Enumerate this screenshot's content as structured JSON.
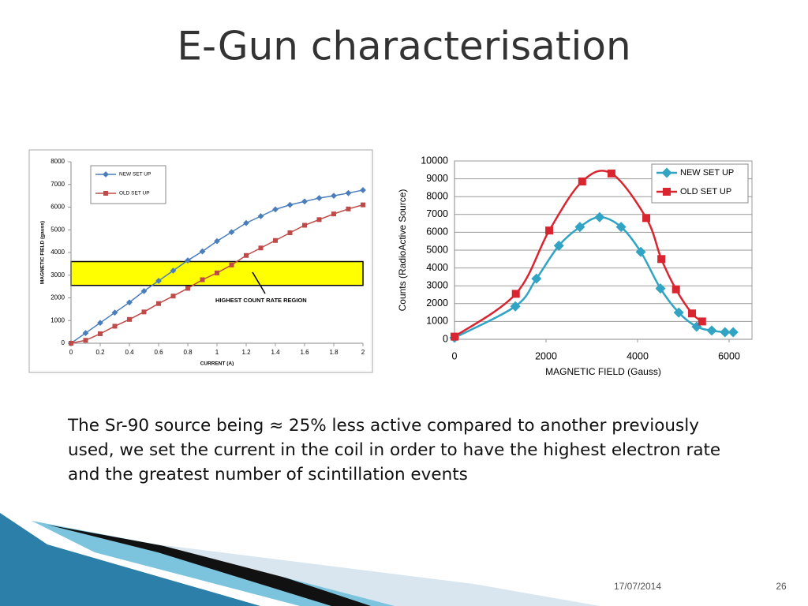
{
  "title": "E-Gun characterisation",
  "body_text": "The Sr-90 source being ≈ 25% less active compared to another previously used, we set the current in the coil in order to have the highest electron rate and the greatest number of scintillation events",
  "date": "17/07/2014",
  "page_number": "26",
  "chart_data": [
    {
      "type": "line",
      "x_label": "CURRENT  (A)",
      "y_label": "MAGNETIC FIELD (gauss)",
      "x": [
        0,
        0.1,
        0.2,
        0.3,
        0.4,
        0.5,
        0.6,
        0.7,
        0.8,
        0.9,
        1,
        1.1,
        1.2,
        1.3,
        1.4,
        1.5,
        1.6,
        1.7,
        1.8,
        1.9,
        2
      ],
      "series": [
        {
          "name": "NEW SET UP",
          "color": "#4a7ebb",
          "marker": "diamond",
          "values": [
            0,
            450,
            900,
            1350,
            1800,
            2300,
            2750,
            3200,
            3650,
            4050,
            4500,
            4900,
            5300,
            5600,
            5900,
            6100,
            6250,
            6400,
            6500,
            6620,
            6750
          ]
        },
        {
          "name": "OLD SET UP",
          "color": "#be4b48",
          "marker": "square",
          "values": [
            0,
            130,
            420,
            750,
            1050,
            1380,
            1750,
            2080,
            2420,
            2800,
            3100,
            3450,
            3870,
            4200,
            4530,
            4870,
            5200,
            5450,
            5700,
            5920,
            6100
          ]
        }
      ],
      "xlim": [
        0,
        2
      ],
      "xticks": [
        0,
        0.2,
        0.4,
        0.6,
        0.8,
        1,
        1.2,
        1.4,
        1.6,
        1.8,
        2
      ],
      "ylim": [
        0,
        8000
      ],
      "yticks": [
        0,
        1000,
        2000,
        3000,
        4000,
        5000,
        6000,
        7000,
        8000
      ],
      "grid": false,
      "smooth": false,
      "legend": "top-left",
      "highlight_range": [
        2550,
        3600
      ],
      "highlight_color": "#ffff00",
      "annotation": "HIGHEST COUNT RATE REGION"
    },
    {
      "type": "line",
      "x_label": "MAGNETIC FIELD (Gauss)",
      "y_label": "Counts (RadioActive Source)",
      "series": [
        {
          "name": "NEW SET UP",
          "color": "#31a4c4",
          "marker": "diamond",
          "x": [
            0,
            1330,
            1790,
            2280,
            2740,
            3170,
            3640,
            4070,
            4500,
            4900,
            5290,
            5620,
            5910,
            6090
          ],
          "values": [
            90,
            1850,
            3400,
            5250,
            6300,
            6850,
            6300,
            4900,
            2850,
            1500,
            710,
            490,
            400,
            400
          ]
        },
        {
          "name": "OLD SET UP",
          "color": "#d92530",
          "marker": "square",
          "x": [
            0,
            1340,
            2070,
            2790,
            3430,
            4190,
            4520,
            4840,
            5190,
            5410
          ],
          "values": [
            150,
            2550,
            6100,
            8850,
            9300,
            6800,
            4500,
            2800,
            1450,
            1000
          ]
        }
      ],
      "xlim": [
        0,
        6500
      ],
      "xticks": [
        0,
        2000,
        4000,
        6000
      ],
      "ylim": [
        0,
        10000
      ],
      "yticks": [
        0,
        1000,
        2000,
        3000,
        4000,
        5000,
        6000,
        7000,
        8000,
        9000,
        10000
      ],
      "grid": true,
      "smooth": true,
      "legend": "top-right"
    }
  ]
}
